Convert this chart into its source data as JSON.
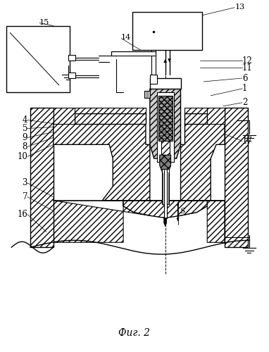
{
  "bg_color": "#ffffff",
  "title": "Фиг. 2",
  "fig_width": 3.82,
  "fig_height": 5.0,
  "dpi": 100
}
